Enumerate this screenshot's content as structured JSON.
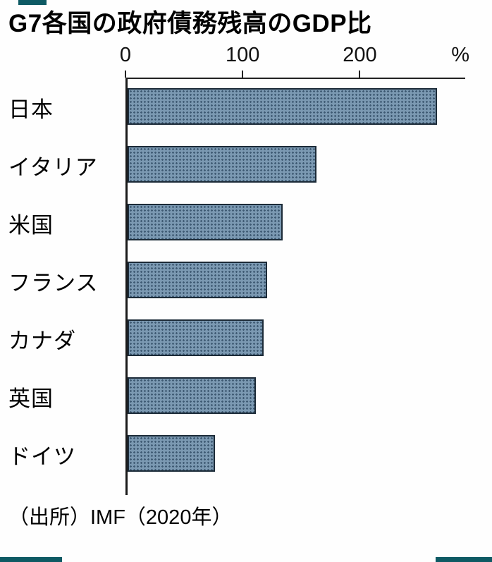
{
  "title": "G7各国の政府債務残高のGDP比",
  "source": "（出所）IMF（2020年）",
  "axis": {
    "unit": "%",
    "ticks": [
      0,
      100,
      200
    ],
    "max": 290
  },
  "chart_data": {
    "type": "bar",
    "orientation": "horizontal",
    "title": "G7各国の政府債務残高のGDP比",
    "categories": [
      "日本",
      "イタリア",
      "米国",
      "フランス",
      "カナダ",
      "英国",
      "ドイツ"
    ],
    "values": [
      266,
      162,
      133,
      120,
      117,
      110,
      75
    ],
    "xlabel": "%",
    "xlim": [
      0,
      290
    ],
    "grid": false,
    "legend": false,
    "source": "（出所）IMF（2020年）",
    "bar_color": "#7b99b2",
    "bar_dot_color": "#3e5a73",
    "bar_border_color": "#1c2b38"
  },
  "decor": {
    "corner_color": "#0e5a64"
  }
}
